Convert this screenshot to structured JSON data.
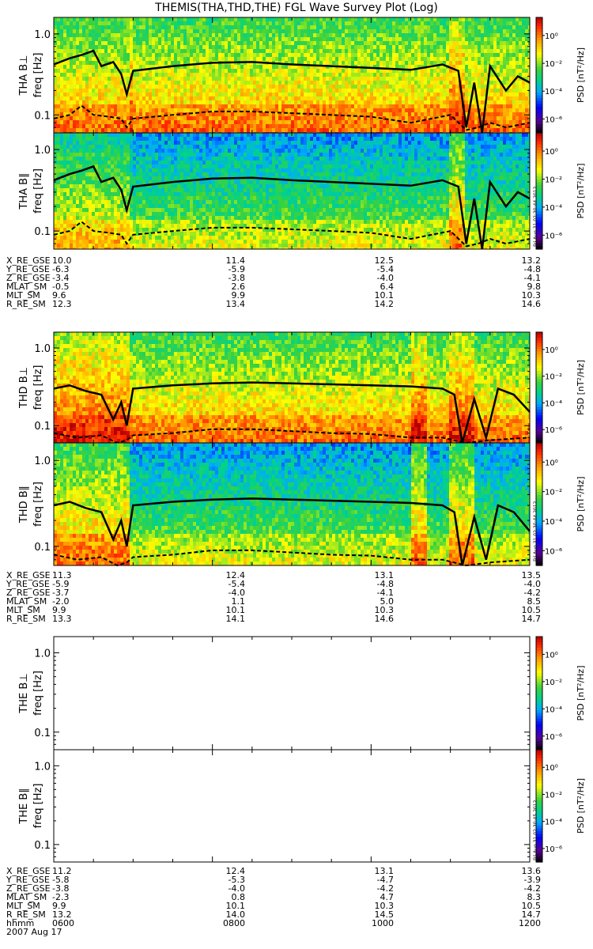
{
  "title": "THEMIS(THA,THD,THE) FGL Wave Survey Plot (Log)",
  "stamp": "Fri Aug 31 02:30:44 2012",
  "stamp_e": "Fri Aug 31 02:30:45 2012",
  "colorbar": {
    "label": "PSD [nT²/Hz]",
    "ticks": [
      {
        "value": -6,
        "label": "10⁻⁶"
      },
      {
        "value": -4,
        "label": "10⁻⁴"
      },
      {
        "value": -2,
        "label": "10⁻²"
      },
      {
        "value": 0,
        "label": "10⁰"
      }
    ],
    "range_log10": [
      -7,
      1.3
    ]
  },
  "chart_data": [
    {
      "type": "heatmap",
      "probe": "THA",
      "component": "perp",
      "ylabel_probe": "THA B⊥",
      "ylabel_freq": "freq [Hz]",
      "y_scale": "log",
      "ylim": [
        0.06,
        1.6
      ],
      "y_ticks": [
        {
          "value": 1.0,
          "label": "1.0"
        },
        {
          "value": 0.1,
          "label": "0.1"
        }
      ],
      "xlim_hours": [
        6,
        12
      ],
      "background_level": "high",
      "bands": [
        {
          "start": 6.0,
          "end": 6.95,
          "level": "high"
        },
        {
          "start": 6.95,
          "end": 7.0,
          "level": "peak"
        },
        {
          "start": 11.0,
          "end": 11.2,
          "level": "peak"
        }
      ],
      "solid_line": [
        [
          6.0,
          0.42
        ],
        [
          6.2,
          0.5
        ],
        [
          6.35,
          0.55
        ],
        [
          6.5,
          0.62
        ],
        [
          6.6,
          0.4
        ],
        [
          6.75,
          0.45
        ],
        [
          6.85,
          0.32
        ],
        [
          6.92,
          0.18
        ],
        [
          7.0,
          0.35
        ],
        [
          7.5,
          0.4
        ],
        [
          8.0,
          0.44
        ],
        [
          8.5,
          0.45
        ],
        [
          9.0,
          0.42
        ],
        [
          9.5,
          0.4
        ],
        [
          10.0,
          0.38
        ],
        [
          10.5,
          0.36
        ],
        [
          10.9,
          0.42
        ],
        [
          11.1,
          0.35
        ],
        [
          11.2,
          0.07
        ],
        [
          11.3,
          0.25
        ],
        [
          11.4,
          0.06
        ],
        [
          11.5,
          0.4
        ],
        [
          11.7,
          0.2
        ],
        [
          11.85,
          0.3
        ],
        [
          12.0,
          0.25
        ]
      ],
      "dashed_line": [
        [
          6.0,
          0.09
        ],
        [
          6.2,
          0.1
        ],
        [
          6.35,
          0.13
        ],
        [
          6.5,
          0.1
        ],
        [
          6.7,
          0.095
        ],
        [
          6.85,
          0.09
        ],
        [
          6.92,
          0.07
        ],
        [
          7.0,
          0.09
        ],
        [
          7.5,
          0.1
        ],
        [
          8.0,
          0.11
        ],
        [
          8.5,
          0.11
        ],
        [
          9.0,
          0.105
        ],
        [
          9.5,
          0.1
        ],
        [
          10.0,
          0.095
        ],
        [
          10.5,
          0.08
        ],
        [
          11.0,
          0.1
        ],
        [
          11.2,
          0.065
        ],
        [
          11.35,
          0.07
        ],
        [
          11.5,
          0.08
        ],
        [
          11.7,
          0.07
        ],
        [
          12.0,
          0.08
        ]
      ]
    },
    {
      "type": "heatmap",
      "probe": "THA",
      "component": "par",
      "ylabel_probe": "THA B∥",
      "ylabel_freq": "freq [Hz]",
      "y_scale": "log",
      "ylim": [
        0.06,
        1.6
      ],
      "y_ticks": [
        {
          "value": 1.0,
          "label": "1.0"
        },
        {
          "value": 0.1,
          "label": "0.1"
        }
      ],
      "xlim_hours": [
        6,
        12
      ],
      "background_level": "mid",
      "bands": [
        {
          "start": 6.0,
          "end": 6.95,
          "level": "mid-high"
        },
        {
          "start": 11.0,
          "end": 11.2,
          "level": "high"
        }
      ],
      "solid_line": [
        [
          6.0,
          0.42
        ],
        [
          6.2,
          0.5
        ],
        [
          6.35,
          0.55
        ],
        [
          6.5,
          0.62
        ],
        [
          6.6,
          0.4
        ],
        [
          6.75,
          0.45
        ],
        [
          6.85,
          0.32
        ],
        [
          6.92,
          0.18
        ],
        [
          7.0,
          0.35
        ],
        [
          7.5,
          0.4
        ],
        [
          8.0,
          0.44
        ],
        [
          8.5,
          0.45
        ],
        [
          9.0,
          0.42
        ],
        [
          9.5,
          0.4
        ],
        [
          10.0,
          0.38
        ],
        [
          10.5,
          0.36
        ],
        [
          10.9,
          0.42
        ],
        [
          11.1,
          0.35
        ],
        [
          11.2,
          0.07
        ],
        [
          11.3,
          0.25
        ],
        [
          11.4,
          0.06
        ],
        [
          11.5,
          0.4
        ],
        [
          11.7,
          0.2
        ],
        [
          11.85,
          0.3
        ],
        [
          12.0,
          0.25
        ]
      ],
      "dashed_line": [
        [
          6.0,
          0.09
        ],
        [
          6.2,
          0.1
        ],
        [
          6.35,
          0.13
        ],
        [
          6.5,
          0.1
        ],
        [
          6.7,
          0.095
        ],
        [
          6.85,
          0.09
        ],
        [
          6.92,
          0.07
        ],
        [
          7.0,
          0.09
        ],
        [
          7.5,
          0.1
        ],
        [
          8.0,
          0.11
        ],
        [
          8.5,
          0.11
        ],
        [
          9.0,
          0.105
        ],
        [
          9.5,
          0.1
        ],
        [
          10.0,
          0.095
        ],
        [
          10.5,
          0.08
        ],
        [
          11.0,
          0.1
        ],
        [
          11.2,
          0.065
        ],
        [
          11.35,
          0.07
        ],
        [
          11.5,
          0.08
        ],
        [
          11.7,
          0.07
        ],
        [
          12.0,
          0.08
        ]
      ]
    },
    {
      "type": "heatmap",
      "probe": "THD",
      "component": "perp",
      "ylabel_probe": "THD B⊥",
      "ylabel_freq": "freq [Hz]",
      "y_scale": "log",
      "ylim": [
        0.06,
        1.6
      ],
      "y_ticks": [
        {
          "value": 1.0,
          "label": "1.0"
        },
        {
          "value": 0.1,
          "label": "0.1"
        }
      ],
      "xlim_hours": [
        6,
        12
      ],
      "background_level": "high",
      "bands": [
        {
          "start": 6.0,
          "end": 6.95,
          "level": "peak"
        },
        {
          "start": 10.5,
          "end": 10.7,
          "level": "peak"
        },
        {
          "start": 11.0,
          "end": 11.3,
          "level": "peak"
        }
      ],
      "solid_line": [
        [
          6.0,
          0.3
        ],
        [
          6.2,
          0.33
        ],
        [
          6.4,
          0.28
        ],
        [
          6.6,
          0.25
        ],
        [
          6.75,
          0.12
        ],
        [
          6.85,
          0.2
        ],
        [
          6.92,
          0.1
        ],
        [
          7.0,
          0.3
        ],
        [
          7.5,
          0.33
        ],
        [
          8.0,
          0.35
        ],
        [
          8.5,
          0.36
        ],
        [
          9.0,
          0.35
        ],
        [
          9.5,
          0.34
        ],
        [
          10.0,
          0.33
        ],
        [
          10.5,
          0.32
        ],
        [
          10.9,
          0.3
        ],
        [
          11.05,
          0.25
        ],
        [
          11.15,
          0.06
        ],
        [
          11.3,
          0.22
        ],
        [
          11.45,
          0.07
        ],
        [
          11.6,
          0.3
        ],
        [
          11.8,
          0.25
        ],
        [
          12.0,
          0.15
        ]
      ],
      "dashed_line": [
        [
          6.0,
          0.08
        ],
        [
          6.3,
          0.07
        ],
        [
          6.6,
          0.075
        ],
        [
          6.8,
          0.06
        ],
        [
          6.92,
          0.065
        ],
        [
          7.0,
          0.075
        ],
        [
          7.5,
          0.08
        ],
        [
          8.0,
          0.09
        ],
        [
          8.5,
          0.09
        ],
        [
          9.0,
          0.085
        ],
        [
          9.5,
          0.08
        ],
        [
          10.0,
          0.078
        ],
        [
          10.5,
          0.07
        ],
        [
          10.9,
          0.07
        ],
        [
          11.2,
          0.06
        ],
        [
          11.5,
          0.065
        ],
        [
          12.0,
          0.07
        ]
      ]
    },
    {
      "type": "heatmap",
      "probe": "THD",
      "component": "par",
      "ylabel_probe": "THD B∥",
      "ylabel_freq": "freq [Hz]",
      "y_scale": "log",
      "ylim": [
        0.06,
        1.6
      ],
      "y_ticks": [
        {
          "value": 1.0,
          "label": "1.0"
        },
        {
          "value": 0.1,
          "label": "0.1"
        }
      ],
      "xlim_hours": [
        6,
        12
      ],
      "background_level": "mid",
      "bands": [
        {
          "start": 6.0,
          "end": 6.95,
          "level": "high"
        },
        {
          "start": 10.5,
          "end": 10.7,
          "level": "high"
        },
        {
          "start": 11.0,
          "end": 11.3,
          "level": "high"
        }
      ],
      "solid_line": [
        [
          6.0,
          0.3
        ],
        [
          6.2,
          0.33
        ],
        [
          6.4,
          0.28
        ],
        [
          6.6,
          0.25
        ],
        [
          6.75,
          0.12
        ],
        [
          6.85,
          0.2
        ],
        [
          6.92,
          0.1
        ],
        [
          7.0,
          0.3
        ],
        [
          7.5,
          0.33
        ],
        [
          8.0,
          0.35
        ],
        [
          8.5,
          0.36
        ],
        [
          9.0,
          0.35
        ],
        [
          9.5,
          0.34
        ],
        [
          10.0,
          0.33
        ],
        [
          10.5,
          0.32
        ],
        [
          10.9,
          0.3
        ],
        [
          11.05,
          0.25
        ],
        [
          11.15,
          0.06
        ],
        [
          11.3,
          0.22
        ],
        [
          11.45,
          0.07
        ],
        [
          11.6,
          0.3
        ],
        [
          11.8,
          0.25
        ],
        [
          12.0,
          0.15
        ]
      ],
      "dashed_line": [
        [
          6.0,
          0.08
        ],
        [
          6.3,
          0.07
        ],
        [
          6.6,
          0.075
        ],
        [
          6.8,
          0.06
        ],
        [
          6.92,
          0.065
        ],
        [
          7.0,
          0.075
        ],
        [
          7.5,
          0.08
        ],
        [
          8.0,
          0.09
        ],
        [
          8.5,
          0.09
        ],
        [
          9.0,
          0.085
        ],
        [
          9.5,
          0.08
        ],
        [
          10.0,
          0.078
        ],
        [
          10.5,
          0.07
        ],
        [
          10.9,
          0.07
        ],
        [
          11.2,
          0.06
        ],
        [
          11.5,
          0.065
        ],
        [
          12.0,
          0.07
        ]
      ]
    },
    {
      "type": "heatmap",
      "probe": "THE",
      "component": "perp",
      "ylabel_probe": "THE B⊥",
      "ylabel_freq": "freq [Hz]",
      "y_scale": "log",
      "ylim": [
        0.06,
        1.6
      ],
      "y_ticks": [
        {
          "value": 1.0,
          "label": "1.0"
        },
        {
          "value": 0.1,
          "label": "0.1"
        }
      ],
      "xlim_hours": [
        6,
        12
      ],
      "empty": true
    },
    {
      "type": "heatmap",
      "probe": "THE",
      "component": "par",
      "ylabel_probe": "THE B∥",
      "ylabel_freq": "freq [Hz]",
      "y_scale": "log",
      "ylim": [
        0.06,
        1.6
      ],
      "y_ticks": [
        {
          "value": 1.0,
          "label": "1.0"
        },
        {
          "value": 0.1,
          "label": "0.1"
        }
      ],
      "xlim_hours": [
        6,
        12
      ],
      "empty": true
    }
  ],
  "ephemeris": [
    {
      "rows": [
        {
          "label": "X_RE_GSE",
          "values": [
            "10.0",
            "11.4",
            "12.5",
            "13.2"
          ]
        },
        {
          "label": "Y_RE_GSE",
          "values": [
            "-6.3",
            "-5.9",
            "-5.4",
            "-4.8"
          ]
        },
        {
          "label": "Z_RE_GSE",
          "values": [
            "-3.4",
            "-3.8",
            "-4.0",
            "-4.1"
          ]
        },
        {
          "label": "MLAT_SM",
          "values": [
            "-0.5",
            "2.6",
            "6.4",
            "9.8"
          ]
        },
        {
          "label": "MLT_SM",
          "values": [
            "9.6",
            "9.9",
            "10.1",
            "10.3"
          ]
        },
        {
          "label": "R_RE_SM",
          "values": [
            "12.3",
            "13.4",
            "14.2",
            "14.6"
          ]
        }
      ]
    },
    {
      "rows": [
        {
          "label": "X_RE_GSE",
          "values": [
            "11.3",
            "12.4",
            "13.1",
            "13.5"
          ]
        },
        {
          "label": "Y_RE_GSE",
          "values": [
            "-5.9",
            "-5.4",
            "-4.8",
            "-4.0"
          ]
        },
        {
          "label": "Z_RE_GSE",
          "values": [
            "-3.7",
            "-4.0",
            "-4.1",
            "-4.2"
          ]
        },
        {
          "label": "MLAT_SM",
          "values": [
            "-2.0",
            "1.1",
            "5.0",
            "8.5"
          ]
        },
        {
          "label": "MLT_SM",
          "values": [
            "9.9",
            "10.1",
            "10.3",
            "10.5"
          ]
        },
        {
          "label": "R_RE_SM",
          "values": [
            "13.3",
            "14.1",
            "14.6",
            "14.7"
          ]
        }
      ]
    },
    {
      "rows": [
        {
          "label": "X_RE_GSE",
          "values": [
            "11.2",
            "12.4",
            "13.1",
            "13.6"
          ]
        },
        {
          "label": "Y_RE_GSE",
          "values": [
            "-5.8",
            "-5.3",
            "-4.7",
            "-3.9"
          ]
        },
        {
          "label": "Z_RE_GSE",
          "values": [
            "-3.8",
            "-4.0",
            "-4.2",
            "-4.2"
          ]
        },
        {
          "label": "MLAT_SM",
          "values": [
            "-2.3",
            "0.8",
            "4.7",
            "8.3"
          ]
        },
        {
          "label": "MLT_SM",
          "values": [
            "9.9",
            "10.1",
            "10.3",
            "10.5"
          ]
        },
        {
          "label": "R_RE_SM",
          "values": [
            "13.2",
            "14.0",
            "14.5",
            "14.7"
          ]
        },
        {
          "label": "hhmm",
          "values": [
            "0600",
            "0800",
            "1000",
            "1200"
          ]
        }
      ],
      "date": "2007 Aug 17"
    }
  ]
}
